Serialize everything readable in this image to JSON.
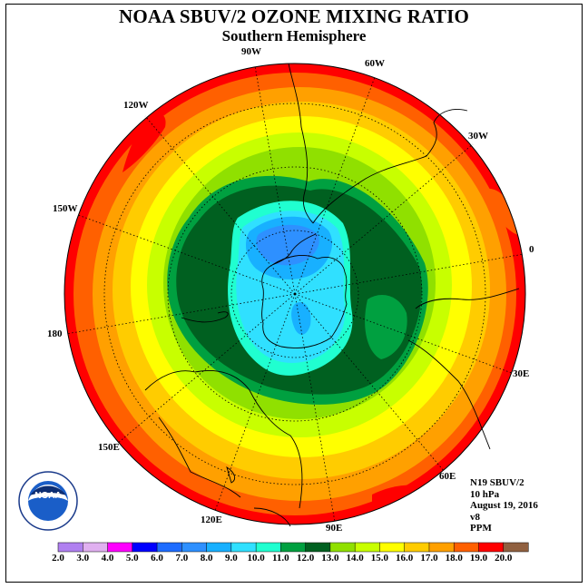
{
  "title": "NOAA SBUV/2 OZONE MIXING RATIO",
  "subtitle": "Southern Hemisphere",
  "longitude_labels": [
    "90W",
    "60W",
    "30W",
    "0",
    "30E",
    "60E",
    "90E",
    "120E",
    "150E",
    "180",
    "150W",
    "120W"
  ],
  "info": {
    "satellite": "N19 SBUV/2",
    "level": "10 hPa",
    "date": "August 19, 2016",
    "version": "v8",
    "units": "PPM"
  },
  "logo": {
    "text": "NOAA",
    "ring_text": "NATIONAL OCEANIC AND ATMOSPHERIC ADMINISTRATION · U.S. DEPARTMENT OF COMMERCE"
  },
  "colorbar": {
    "ticks": [
      "2.0",
      "3.0",
      "4.0",
      "5.0",
      "6.0",
      "7.0",
      "8.0",
      "9.0",
      "10.0",
      "11.0",
      "12.0",
      "13.0",
      "14.0",
      "15.0",
      "16.0",
      "17.0",
      "18.0",
      "19.0",
      "20.0"
    ],
    "colors": [
      "#b080f0",
      "#e0b0f0",
      "#ff00ff",
      "#0000ff",
      "#1e6cff",
      "#2e90ff",
      "#18b0ff",
      "#30e0ff",
      "#20ffd0",
      "#00a040",
      "#006020",
      "#90e000",
      "#c8ff00",
      "#ffff00",
      "#ffcc00",
      "#ffa000",
      "#ff6000",
      "#ff0000",
      "#906040"
    ]
  }
}
